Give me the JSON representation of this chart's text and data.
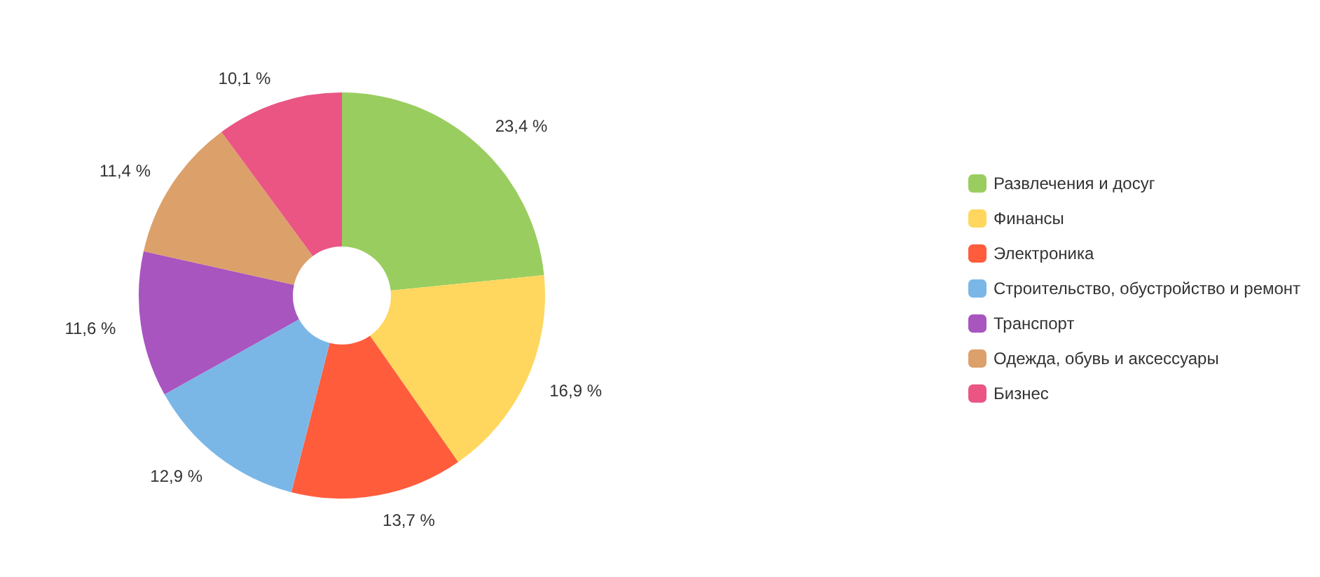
{
  "chart_data": {
    "type": "donut",
    "categories": [
      "Развлечения и досуг",
      "Финансы",
      "Электроника",
      "Строительство, обустройство и ремонт",
      "Транспорт",
      "Одежда, обувь и аксессуары",
      "Бизнес"
    ],
    "values": [
      23.4,
      16.9,
      13.7,
      12.9,
      11.6,
      11.4,
      10.1
    ],
    "colors": [
      "#9acd5f",
      "#ffd75e",
      "#ff5c3c",
      "#7bb7e6",
      "#a855c0",
      "#dca06a",
      "#ea5583"
    ],
    "value_labels": [
      "23,4 %",
      "16,9 %",
      "13,7 %",
      "12,9 %",
      "11,6 %",
      "11,4 %",
      "10,1 %"
    ],
    "legend": "right"
  }
}
